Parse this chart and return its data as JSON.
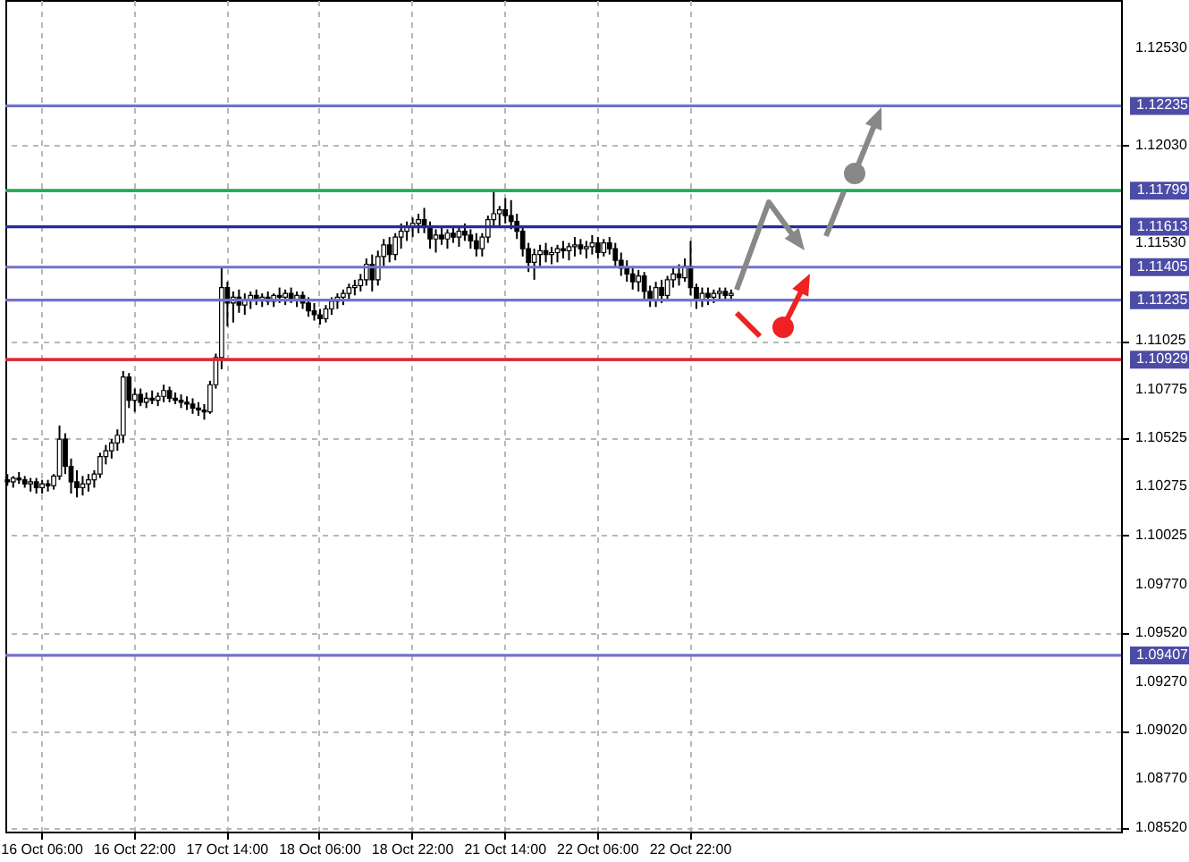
{
  "chart_data": {
    "type": "candlestick",
    "categories": [
      null,
      null,
      null,
      null,
      null,
      null,
      "16 Oct 06:00",
      null,
      null,
      null,
      null,
      null,
      null,
      null,
      null,
      null,
      null,
      null,
      null,
      null,
      null,
      null,
      "16 Oct 22:00",
      null,
      null,
      null,
      null,
      null,
      null,
      null,
      null,
      null,
      null,
      null,
      null,
      null,
      null,
      null,
      "17 Oct 14:00",
      null,
      null,
      null,
      null,
      null,
      null,
      null,
      null,
      null,
      null,
      null,
      null,
      null,
      null,
      null,
      "18 Oct 06:00",
      null,
      null,
      null,
      null,
      null,
      null,
      null,
      null,
      null,
      null,
      null,
      null,
      null,
      null,
      null,
      "18 Oct 22:00",
      null,
      null,
      null,
      null,
      null,
      null,
      null,
      null,
      null,
      null,
      null,
      null,
      null,
      null,
      null,
      "21 Oct 14:00",
      null,
      null,
      null,
      null,
      null,
      null,
      null,
      null,
      null,
      null,
      null,
      null,
      null,
      null,
      null,
      "22 Oct 06:00",
      null,
      null,
      null,
      null,
      null,
      null,
      null,
      null,
      null,
      null,
      null,
      null,
      null,
      null,
      null,
      "22 Oct 22:00",
      null,
      null,
      null,
      null,
      null,
      null,
      null,
      null,
      null,
      null,
      null,
      null,
      null,
      null,
      null,
      null,
      null,
      null,
      null,
      null,
      null,
      null,
      null,
      null,
      null,
      null,
      null,
      null,
      null,
      null,
      null,
      null,
      null,
      null,
      null,
      null,
      null,
      null,
      null,
      null,
      null,
      null,
      null,
      null,
      null,
      null,
      null,
      null,
      null,
      null,
      null,
      null,
      null,
      null,
      null,
      null,
      null,
      null,
      null,
      null,
      null,
      null,
      null,
      null,
      null,
      null,
      null,
      null,
      null,
      null,
      null,
      null,
      null,
      null
    ],
    "ohlc": [
      [
        1.1031,
        1.1034,
        1.1028,
        1.103
      ],
      [
        1.103,
        1.1033,
        1.1027,
        1.1032
      ],
      [
        1.1032,
        1.1035,
        1.1029,
        1.1031
      ],
      [
        1.1031,
        1.1033,
        1.1027,
        1.1029
      ],
      [
        1.1029,
        1.1032,
        1.1025,
        1.103
      ],
      [
        1.103,
        1.1032,
        1.1024,
        1.1027
      ],
      [
        1.1027,
        1.1031,
        1.1024,
        1.1029
      ],
      [
        1.1029,
        1.1031,
        1.1025,
        1.1028
      ],
      [
        1.1028,
        1.1034,
        1.1026,
        1.1033
      ],
      [
        1.1033,
        1.1059,
        1.1031,
        1.1052
      ],
      [
        1.1052,
        1.1055,
        1.1034,
        1.1038
      ],
      [
        1.1038,
        1.1042,
        1.1024,
        1.103
      ],
      [
        1.103,
        1.1036,
        1.1022,
        1.1027
      ],
      [
        1.1027,
        1.1033,
        1.1023,
        1.1029
      ],
      [
        1.1029,
        1.1034,
        1.1025,
        1.1031
      ],
      [
        1.1031,
        1.1036,
        1.1027,
        1.1034
      ],
      [
        1.1034,
        1.1045,
        1.1032,
        1.1043
      ],
      [
        1.1043,
        1.1049,
        1.1039,
        1.1046
      ],
      [
        1.1046,
        1.1052,
        1.1042,
        1.105
      ],
      [
        1.105,
        1.1057,
        1.1046,
        1.1054
      ],
      [
        1.1054,
        1.1087,
        1.105,
        1.1084
      ],
      [
        1.1084,
        1.1086,
        1.1068,
        1.1072
      ],
      [
        1.1072,
        1.1078,
        1.1066,
        1.1075
      ],
      [
        1.1075,
        1.1078,
        1.1069,
        1.1071
      ],
      [
        1.1071,
        1.1076,
        1.1068,
        1.1073
      ],
      [
        1.1073,
        1.1077,
        1.107,
        1.1072
      ],
      [
        1.1072,
        1.1076,
        1.1069,
        1.1074
      ],
      [
        1.1074,
        1.108,
        1.1071,
        1.1077
      ],
      [
        1.1077,
        1.1079,
        1.1071,
        1.1073
      ],
      [
        1.1073,
        1.1076,
        1.107,
        1.1072
      ],
      [
        1.1072,
        1.1075,
        1.1068,
        1.1071
      ],
      [
        1.1071,
        1.1074,
        1.1067,
        1.107
      ],
      [
        1.107,
        1.1073,
        1.1065,
        1.1068
      ],
      [
        1.1068,
        1.1071,
        1.1064,
        1.1067
      ],
      [
        1.1067,
        1.107,
        1.1062,
        1.1066
      ],
      [
        1.1066,
        1.1082,
        1.1065,
        1.108
      ],
      [
        1.108,
        1.1096,
        1.1078,
        1.1094
      ],
      [
        1.1094,
        1.114,
        1.1088,
        1.113
      ],
      [
        1.113,
        1.1133,
        1.111,
        1.1122
      ],
      [
        1.1122,
        1.1128,
        1.1112,
        1.1125
      ],
      [
        1.1125,
        1.1129,
        1.1117,
        1.1121
      ],
      [
        1.1121,
        1.1127,
        1.1116,
        1.1124
      ],
      [
        1.1124,
        1.1128,
        1.1119,
        1.1126
      ],
      [
        1.1126,
        1.1129,
        1.1121,
        1.1124
      ],
      [
        1.1124,
        1.1127,
        1.112,
        1.1125
      ],
      [
        1.1125,
        1.1128,
        1.1121,
        1.1123
      ],
      [
        1.1123,
        1.1127,
        1.112,
        1.1126
      ],
      [
        1.1126,
        1.113,
        1.1122,
        1.1125
      ],
      [
        1.1125,
        1.1129,
        1.1121,
        1.1127
      ],
      [
        1.1127,
        1.113,
        1.1122,
        1.1124
      ],
      [
        1.1124,
        1.1128,
        1.112,
        1.1126
      ],
      [
        1.1126,
        1.1128,
        1.1119,
        1.1122
      ],
      [
        1.1122,
        1.1125,
        1.1115,
        1.1118
      ],
      [
        1.1118,
        1.1122,
        1.1113,
        1.1116
      ],
      [
        1.1116,
        1.1119,
        1.1111,
        1.1114
      ],
      [
        1.1114,
        1.1121,
        1.1112,
        1.1119
      ],
      [
        1.1119,
        1.1125,
        1.1116,
        1.1123
      ],
      [
        1.1123,
        1.1127,
        1.1119,
        1.1125
      ],
      [
        1.1125,
        1.1129,
        1.1121,
        1.1127
      ],
      [
        1.1127,
        1.1132,
        1.1124,
        1.113
      ],
      [
        1.113,
        1.1134,
        1.1126,
        1.1131
      ],
      [
        1.1131,
        1.1137,
        1.1128,
        1.1134
      ],
      [
        1.1134,
        1.1145,
        1.1131,
        1.1142
      ],
      [
        1.1142,
        1.1147,
        1.1128,
        1.1134
      ],
      [
        1.1134,
        1.1149,
        1.1131,
        1.1146
      ],
      [
        1.1146,
        1.1155,
        1.1141,
        1.1152
      ],
      [
        1.1152,
        1.1156,
        1.1143,
        1.1147
      ],
      [
        1.1147,
        1.1158,
        1.1144,
        1.1156
      ],
      [
        1.1156,
        1.1163,
        1.115,
        1.1159
      ],
      [
        1.1159,
        1.1164,
        1.1154,
        1.1161
      ],
      [
        1.1161,
        1.1166,
        1.1156,
        1.1163
      ],
      [
        1.1163,
        1.1168,
        1.1158,
        1.1165
      ],
      [
        1.1165,
        1.1171,
        1.1158,
        1.1161
      ],
      [
        1.1161,
        1.1164,
        1.115,
        1.1155
      ],
      [
        1.1155,
        1.116,
        1.1148,
        1.1157
      ],
      [
        1.1157,
        1.1161,
        1.1152,
        1.1155
      ],
      [
        1.1155,
        1.116,
        1.115,
        1.1158
      ],
      [
        1.1158,
        1.1162,
        1.1153,
        1.1156
      ],
      [
        1.1156,
        1.1161,
        1.1151,
        1.1159
      ],
      [
        1.1159,
        1.1163,
        1.1154,
        1.1157
      ],
      [
        1.1157,
        1.116,
        1.115,
        1.1154
      ],
      [
        1.1154,
        1.1158,
        1.1146,
        1.115
      ],
      [
        1.115,
        1.1158,
        1.1146,
        1.1156
      ],
      [
        1.1156,
        1.1167,
        1.1153,
        1.1165
      ],
      [
        1.1165,
        1.118,
        1.1161,
        1.1168
      ],
      [
        1.1168,
        1.1172,
        1.1162,
        1.117
      ],
      [
        1.117,
        1.1176,
        1.1163,
        1.1167
      ],
      [
        1.1167,
        1.1175,
        1.116,
        1.1164
      ],
      [
        1.1164,
        1.1168,
        1.1155,
        1.1159
      ],
      [
        1.1159,
        1.1162,
        1.1146,
        1.115
      ],
      [
        1.115,
        1.1153,
        1.1138,
        1.1143
      ],
      [
        1.1143,
        1.115,
        1.1134,
        1.1147
      ],
      [
        1.1147,
        1.1152,
        1.1141,
        1.1149
      ],
      [
        1.1149,
        1.1153,
        1.1143,
        1.1147
      ],
      [
        1.1147,
        1.1151,
        1.1142,
        1.1148
      ],
      [
        1.1148,
        1.1152,
        1.1143,
        1.115
      ],
      [
        1.115,
        1.1154,
        1.1145,
        1.1149
      ],
      [
        1.1149,
        1.1153,
        1.1144,
        1.1151
      ],
      [
        1.1151,
        1.1156,
        1.1146,
        1.1152
      ],
      [
        1.1152,
        1.1155,
        1.1147,
        1.115
      ],
      [
        1.115,
        1.1154,
        1.1145,
        1.1151
      ],
      [
        1.1151,
        1.1157,
        1.1147,
        1.1153
      ],
      [
        1.1153,
        1.1156,
        1.1145,
        1.1148
      ],
      [
        1.1148,
        1.1155,
        1.1146,
        1.1153
      ],
      [
        1.1153,
        1.1156,
        1.1147,
        1.115
      ],
      [
        1.115,
        1.1153,
        1.1141,
        1.1144
      ],
      [
        1.1144,
        1.1148,
        1.1136,
        1.114
      ],
      [
        1.114,
        1.1144,
        1.1133,
        1.1137
      ],
      [
        1.1137,
        1.1141,
        1.1129,
        1.1133
      ],
      [
        1.1133,
        1.1139,
        1.1128,
        1.1136
      ],
      [
        1.1136,
        1.1138,
        1.1124,
        1.1128
      ],
      [
        1.1128,
        1.1131,
        1.112,
        1.1124
      ],
      [
        1.1124,
        1.1133,
        1.112,
        1.113
      ],
      [
        1.113,
        1.1134,
        1.1122,
        1.1126
      ],
      [
        1.1126,
        1.1136,
        1.1124,
        1.1134
      ],
      [
        1.1134,
        1.114,
        1.113,
        1.1137
      ],
      [
        1.1137,
        1.1142,
        1.1131,
        1.1135
      ],
      [
        1.1135,
        1.1145,
        1.1133,
        1.1141
      ],
      [
        1.1141,
        1.1154,
        1.1126,
        1.113
      ],
      [
        1.113,
        1.1132,
        1.1119,
        1.1124
      ],
      [
        1.1124,
        1.113,
        1.112,
        1.1127
      ],
      [
        1.1127,
        1.113,
        1.1121,
        1.1125
      ],
      [
        1.1125,
        1.1129,
        1.1122,
        1.1127
      ],
      [
        1.1127,
        1.113,
        1.1123,
        1.1128
      ],
      [
        1.1128,
        1.113,
        1.1124,
        1.1126
      ],
      [
        1.1126,
        1.1129,
        1.1123,
        1.1127
      ],
      null,
      null,
      null,
      null,
      null,
      null,
      null,
      null,
      null,
      null,
      null,
      null,
      null,
      null,
      null,
      null,
      null,
      null,
      null,
      null,
      null,
      null,
      null,
      null,
      null,
      null,
      null,
      null,
      null,
      null,
      null,
      null,
      null,
      null,
      null,
      null,
      null,
      null,
      null,
      null,
      null,
      null,
      null,
      null,
      null,
      null,
      null,
      null,
      null,
      null,
      null,
      null,
      null,
      null,
      null,
      null,
      null,
      null,
      null,
      null,
      null,
      null,
      null,
      null,
      null,
      null,
      null
    ],
    "ylim": [
      1.085,
      1.1278
    ],
    "yticks": [
      {
        "value": 1.1253,
        "label": "1.12530"
      },
      {
        "value": 1.1203,
        "label": "1.12030"
      },
      {
        "value": 1.1153,
        "label": "1.11530"
      },
      {
        "value": 1.11025,
        "label": "1.11025"
      },
      {
        "value": 1.10775,
        "label": "1.10775"
      },
      {
        "value": 1.10525,
        "label": "1.10525"
      },
      {
        "value": 1.10275,
        "label": "1.10275"
      },
      {
        "value": 1.10025,
        "label": "1.10025"
      },
      {
        "value": 1.0977,
        "label": "1.09770"
      },
      {
        "value": 1.0952,
        "label": "1.09520"
      },
      {
        "value": 1.0927,
        "label": "1.09270"
      },
      {
        "value": 1.0902,
        "label": "1.09020"
      },
      {
        "value": 1.0877,
        "label": "1.08770"
      },
      {
        "value": 1.0852,
        "label": "1.08520"
      }
    ],
    "grid": true,
    "ref_lines": [
      {
        "axis": "y",
        "value": 1.12235,
        "label": "1.12235",
        "color": "#7272cc"
      },
      {
        "axis": "y",
        "value": 1.11799,
        "label": "1.11799",
        "color": "#7272cc"
      },
      {
        "axis": "y",
        "value": 1.11613,
        "label": "1.11613",
        "color": "#28289e"
      },
      {
        "axis": "y",
        "value": 1.11405,
        "label": "1.11405",
        "color": "#7272cc"
      },
      {
        "axis": "y",
        "value": 1.11235,
        "label": "1.11235",
        "color": "#7272cc"
      },
      {
        "axis": "y",
        "value": 1.10929,
        "label": "1.10929",
        "color": "#7272cc"
      },
      {
        "axis": "y",
        "value": 1.09407,
        "label": "1.09407",
        "color": "#7272cc"
      },
      {
        "axis": "y",
        "value": 1.11799,
        "color": "#22aa55"
      },
      {
        "axis": "y",
        "value": 1.10929,
        "color": "#ee2222"
      }
    ]
  }
}
